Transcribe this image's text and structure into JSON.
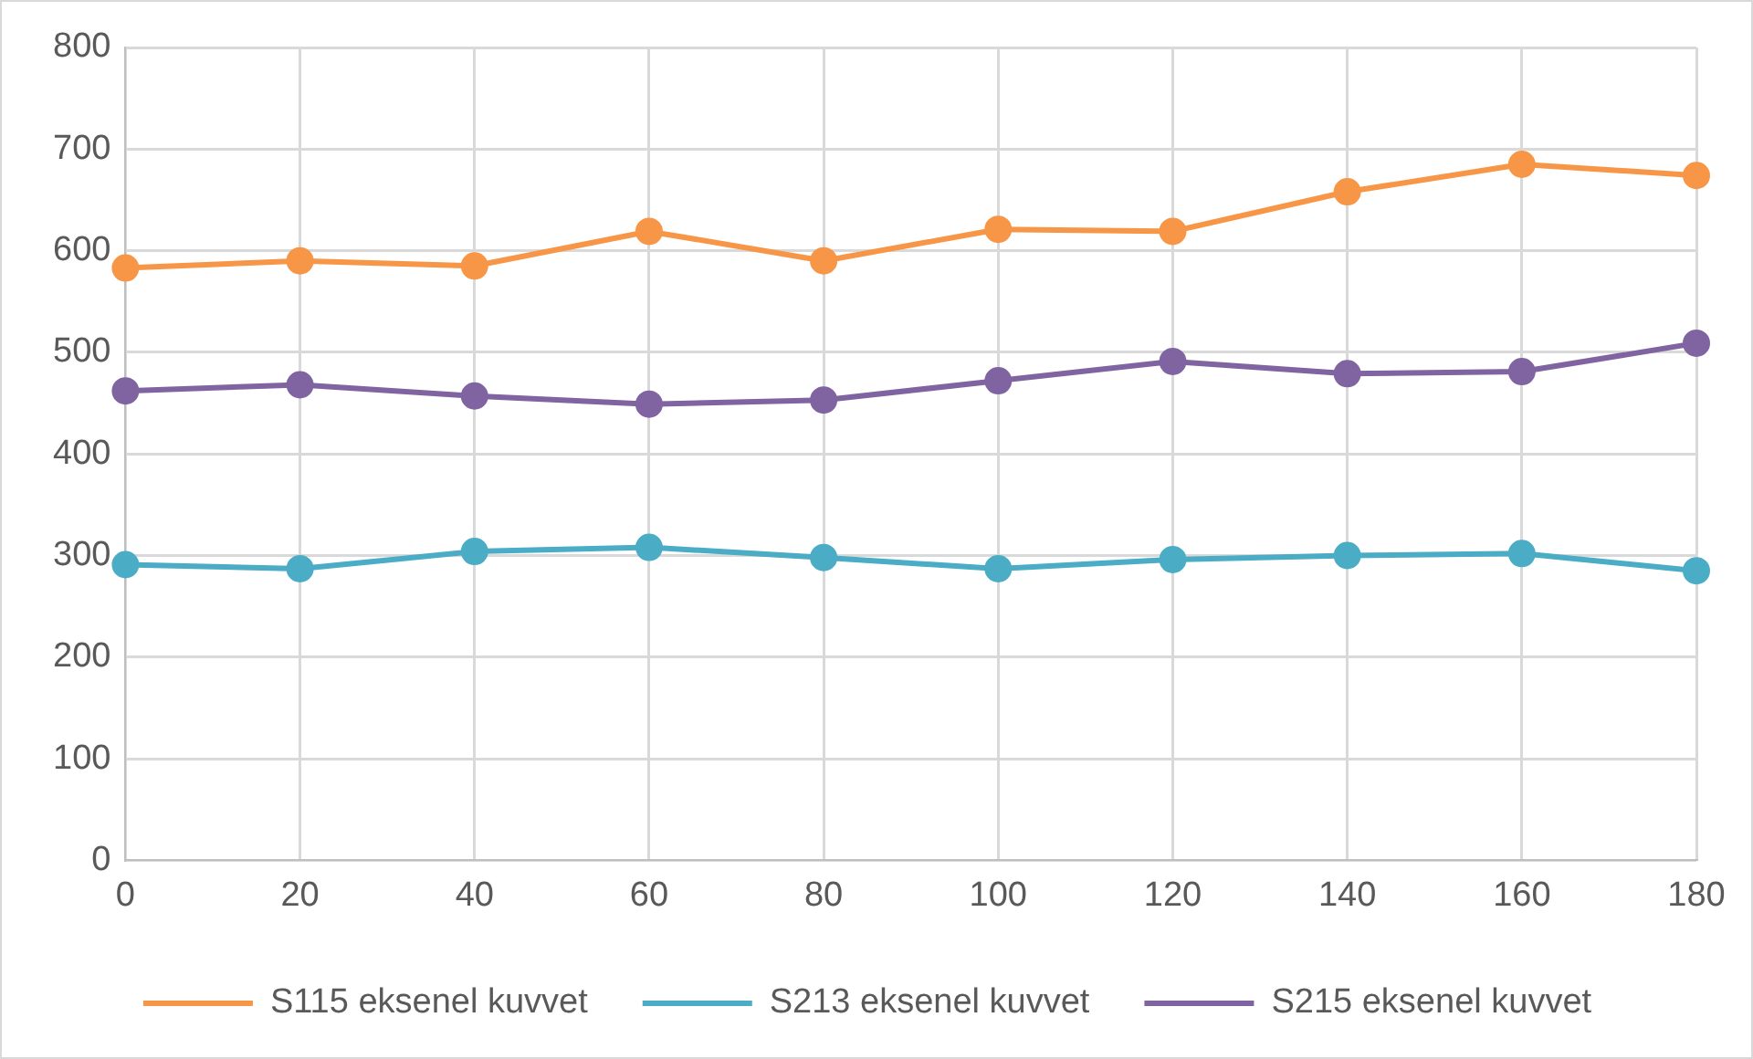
{
  "chart_data": {
    "type": "line",
    "x": [
      0,
      20,
      40,
      60,
      80,
      100,
      120,
      140,
      160,
      180
    ],
    "xlim": [
      0,
      180
    ],
    "xticks": [
      0,
      20,
      40,
      60,
      80,
      100,
      120,
      140,
      160,
      180
    ],
    "ylim": [
      0,
      800
    ],
    "yticks": [
      0,
      100,
      200,
      300,
      400,
      500,
      600,
      700,
      800
    ],
    "grid": true,
    "legend": "bottom",
    "marker": "circle",
    "line_style": "solid",
    "series": [
      {
        "name": "S115 eksenel kuvvet",
        "color": "#f79646",
        "values": [
          583,
          590,
          585,
          619,
          590,
          621,
          619,
          658,
          685,
          674
        ]
      },
      {
        "name": "S213 eksenel kuvvet",
        "color": "#4bacc6",
        "values": [
          291,
          287,
          304,
          308,
          298,
          287,
          296,
          300,
          302,
          285
        ]
      },
      {
        "name": "S215 eksenel kuvvet",
        "color": "#8064a2",
        "values": [
          462,
          468,
          457,
          449,
          453,
          472,
          491,
          479,
          481,
          509
        ]
      }
    ]
  }
}
